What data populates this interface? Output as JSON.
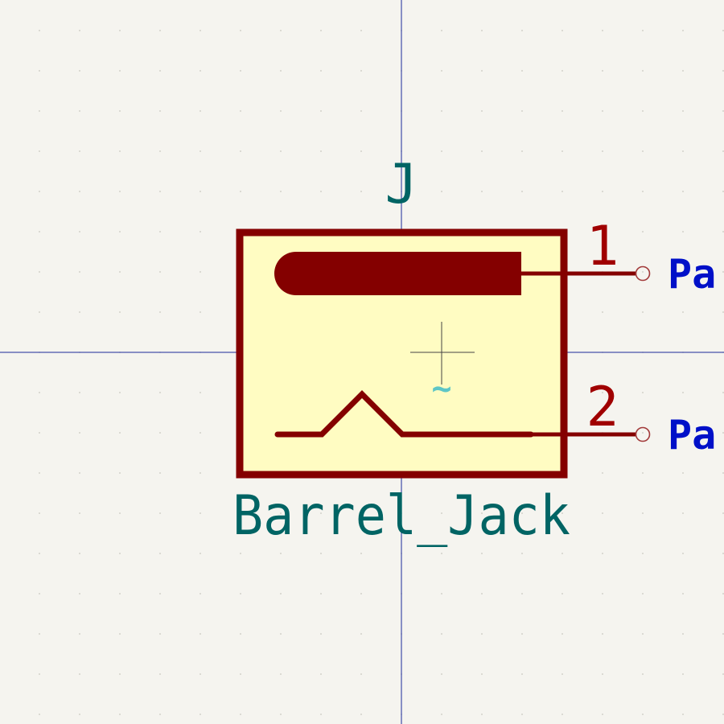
{
  "colors": {
    "background": "#f5f4ef",
    "grid_dot": "#c9c7c0",
    "crosshair": "#1a2a9a",
    "body_fill": "#fffcc2",
    "body_stroke": "#840000",
    "reference_text": "#006464",
    "pin_number_text": "#a00000",
    "pin_name_text": "#0010c8",
    "anchor_cross": "#444444",
    "anchor_marker": "#5ec6c6"
  },
  "symbol": {
    "reference": "J",
    "value": "Barrel_Jack",
    "anchor_marker": "~"
  },
  "pins": [
    {
      "number": "1",
      "name": "Pa"
    },
    {
      "number": "2",
      "name": "Pa"
    }
  ]
}
